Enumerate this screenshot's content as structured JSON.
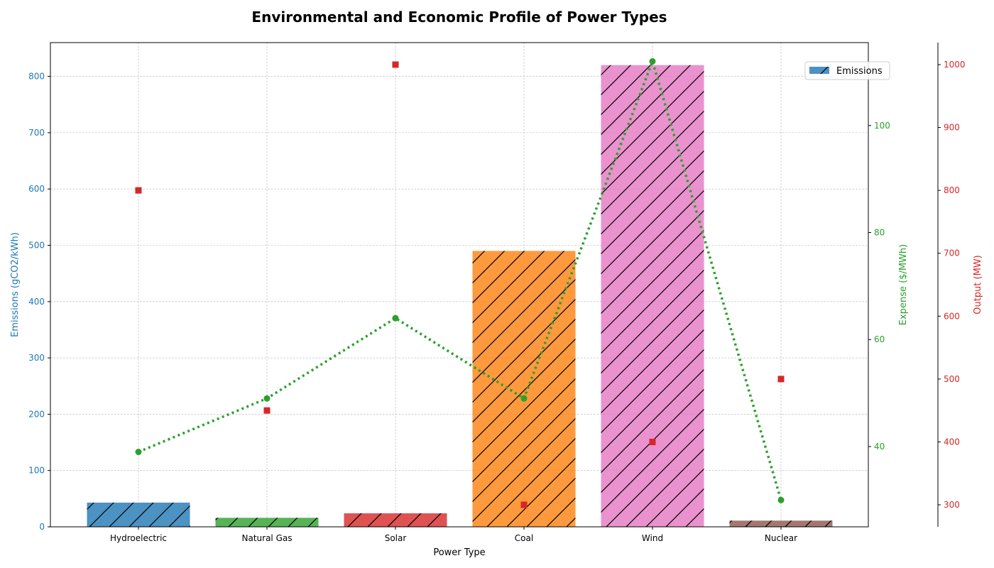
{
  "chart_data": {
    "type": "bar",
    "title": "Environmental and Economic Profile of Power Types",
    "xlabel": "Power Type",
    "categories": [
      "Hydroelectric",
      "Natural Gas",
      "Solar",
      "Coal",
      "Wind",
      "Nuclear"
    ],
    "grid": true,
    "legend": {
      "placement": "top-right",
      "entries": [
        "Emissions"
      ]
    },
    "axes": {
      "emissions": {
        "label": "Emissions (gCO2/kWh)",
        "range": [
          0,
          860
        ],
        "ticks": [
          0,
          100,
          200,
          300,
          400,
          500,
          600,
          700,
          800
        ],
        "color": "#1f77b4"
      },
      "expense": {
        "label": "Expense ($/MWh)",
        "range": [
          25,
          115.5
        ],
        "ticks": [
          40,
          60,
          80,
          100
        ],
        "color": "#2ca02c"
      },
      "output": {
        "label": "Output (MW)",
        "range": [
          265,
          1035
        ],
        "ticks": [
          300,
          400,
          500,
          600,
          700,
          800,
          900,
          1000
        ],
        "color": "#d62728"
      }
    },
    "series": [
      {
        "name": "Emissions",
        "kind": "bar",
        "axis": "emissions",
        "hatch": "diagonal",
        "values": [
          43,
          16,
          24,
          490,
          820,
          11
        ],
        "colors": [
          "#1f77b4",
          "#2ca02c",
          "#d62728",
          "#ff7f0e",
          "#e377c2",
          "#8c564b"
        ]
      },
      {
        "kind": "line",
        "axis": "expense",
        "style": "dotted",
        "color": "#2ca02c",
        "values": [
          39,
          49,
          64,
          49,
          112,
          30
        ]
      },
      {
        "kind": "scatter",
        "axis": "output",
        "marker": "square",
        "color": "#d62728",
        "values": [
          800,
          450,
          1000,
          300,
          400,
          500
        ]
      }
    ]
  }
}
